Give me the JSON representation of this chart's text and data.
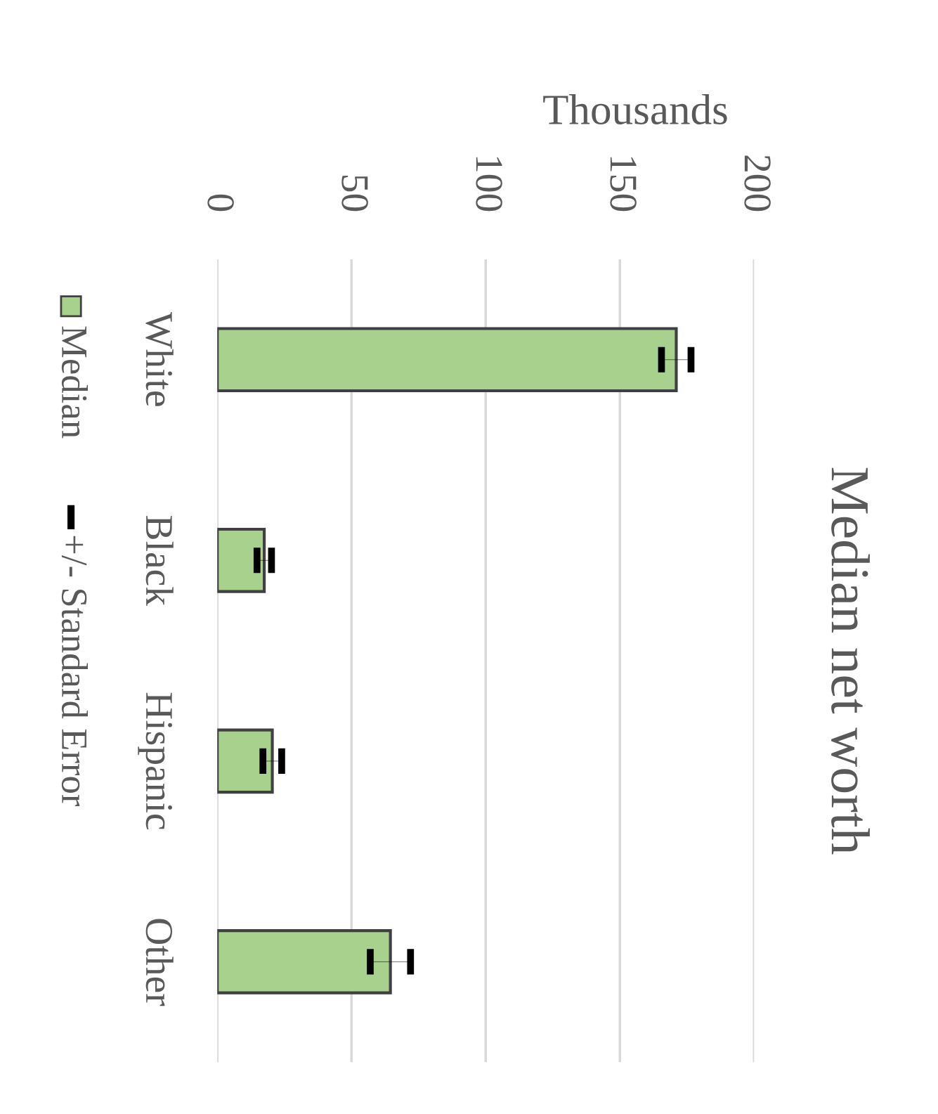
{
  "chart_data": {
    "type": "bar",
    "orientation": "horizontal",
    "title": "Median net worth",
    "xlabel": "Thousands",
    "categories": [
      "White",
      "Black",
      "Hispanic",
      "Other"
    ],
    "series": [
      {
        "name": "Median",
        "color": "#a9d18e",
        "values": [
          171,
          17.5,
          20.5,
          64.5
        ],
        "errors": [
          5.5,
          2.7,
          3.5,
          7.5
        ]
      }
    ],
    "annotations": [
      "+/- Standard Error"
    ],
    "xlim": [
      0,
      200
    ],
    "xticks": [
      0,
      50,
      100,
      150,
      200
    ],
    "grid": "x",
    "legend": "left"
  }
}
